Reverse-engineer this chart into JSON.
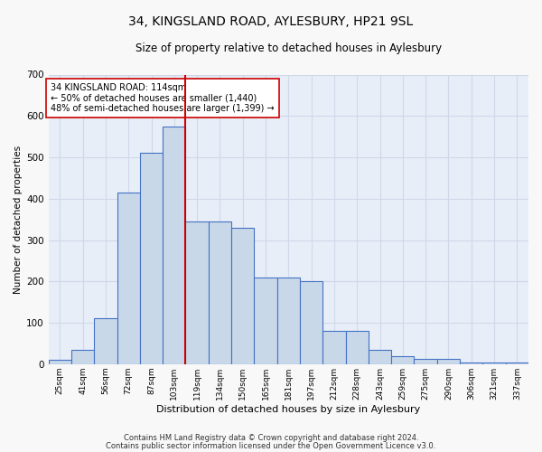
{
  "title_line1": "34, KINGSLAND ROAD, AYLESBURY, HP21 9SL",
  "title_line2": "Size of property relative to detached houses in Aylesbury",
  "xlabel": "Distribution of detached houses by size in Aylesbury",
  "ylabel": "Number of detached properties",
  "bar_labels": [
    "25sqm",
    "41sqm",
    "56sqm",
    "72sqm",
    "87sqm",
    "103sqm",
    "119sqm",
    "134sqm",
    "150sqm",
    "165sqm",
    "181sqm",
    "197sqm",
    "212sqm",
    "228sqm",
    "243sqm",
    "259sqm",
    "275sqm",
    "290sqm",
    "306sqm",
    "321sqm",
    "337sqm"
  ],
  "bar_values": [
    10,
    35,
    110,
    415,
    510,
    575,
    345,
    345,
    330,
    210,
    210,
    200,
    80,
    80,
    35,
    20,
    12,
    12,
    5,
    5,
    5
  ],
  "bar_color": "#c8d8e8",
  "bar_edge_color": "#4472c4",
  "vline_index": 6,
  "vline_color": "#cc0000",
  "annotation_text": "34 KINGSLAND ROAD: 114sqm\n← 50% of detached houses are smaller (1,440)\n48% of semi-detached houses are larger (1,399) →",
  "annotation_box_color": "#ffffff",
  "annotation_box_edge": "#cc0000",
  "ylim": [
    0,
    700
  ],
  "yticks": [
    0,
    100,
    200,
    300,
    400,
    500,
    600,
    700
  ],
  "grid_color": "#d0d8e8",
  "background_color": "#e8eef8",
  "fig_facecolor": "#f8f8f8",
  "footer_line1": "Contains HM Land Registry data © Crown copyright and database right 2024.",
  "footer_line2": "Contains public sector information licensed under the Open Government Licence v3.0."
}
